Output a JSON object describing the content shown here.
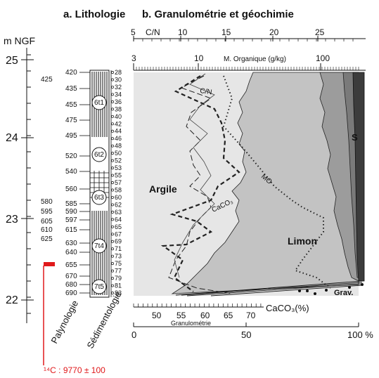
{
  "headings": {
    "litho": "a. Lithologie",
    "granulo": "b. Granulométrie et géochimie"
  },
  "altitude": {
    "unit": "m NGF",
    "ticks": [
      "25",
      "24",
      "23",
      "22"
    ]
  },
  "depth_labels": [
    "420",
    "425",
    "435",
    "455",
    "475",
    "495",
    "520",
    "540",
    "560",
    "580",
    "585",
    "595",
    "590",
    "605",
    "597",
    "610",
    "615",
    "625",
    "630",
    "640",
    "655",
    "670",
    "680",
    "690"
  ],
  "sedi_labels": [
    "28",
    "30",
    "32",
    "34",
    "36",
    "38",
    "40",
    "42",
    "44",
    "46",
    "48",
    "50",
    "52",
    "53",
    "55",
    "57",
    "58",
    "60",
    "62",
    "63",
    "64",
    "65",
    "67",
    "69",
    "71",
    "73",
    "75",
    "77",
    "79",
    "81",
    "83"
  ],
  "palyno_samples": [
    "6t1",
    "6t2",
    "6t3",
    "7t4",
    "7t5"
  ],
  "column_labels": {
    "palyno": "Palynologie",
    "sedi": "Sédimentologie"
  },
  "top_axes": {
    "cn": {
      "label": "C/N",
      "ticks": [
        "5",
        "10",
        "15",
        "20",
        "25"
      ]
    },
    "mo": {
      "label": "M. Organique (g/kg)",
      "ticks": [
        "3",
        "10",
        "100"
      ]
    }
  },
  "bottom_axes": {
    "caco3": {
      "label": "CaCO₃(%)",
      "ticks": [
        "50",
        "55",
        "60",
        "65",
        "70"
      ]
    },
    "granulo": {
      "label": "Granulométrie",
      "ticks": [
        "0",
        "50",
        "100 %"
      ]
    }
  },
  "area_labels": {
    "argile": "Argile",
    "limon": "Limon",
    "sable": "S",
    "grav": "Grav."
  },
  "curve_labels": {
    "cn": "C/N",
    "mo": "MO",
    "caco3": "CaCO₃"
  },
  "radiocarbon": "¹⁴C : 9770 ± 100",
  "colors": {
    "argile": "#e6e6e6",
    "limon": "#c3c3c3",
    "sable": "#9c9c9c",
    "sand2": "#7a7a7a",
    "grav": "#3c3c3c",
    "accent_red": "#e0191b"
  }
}
